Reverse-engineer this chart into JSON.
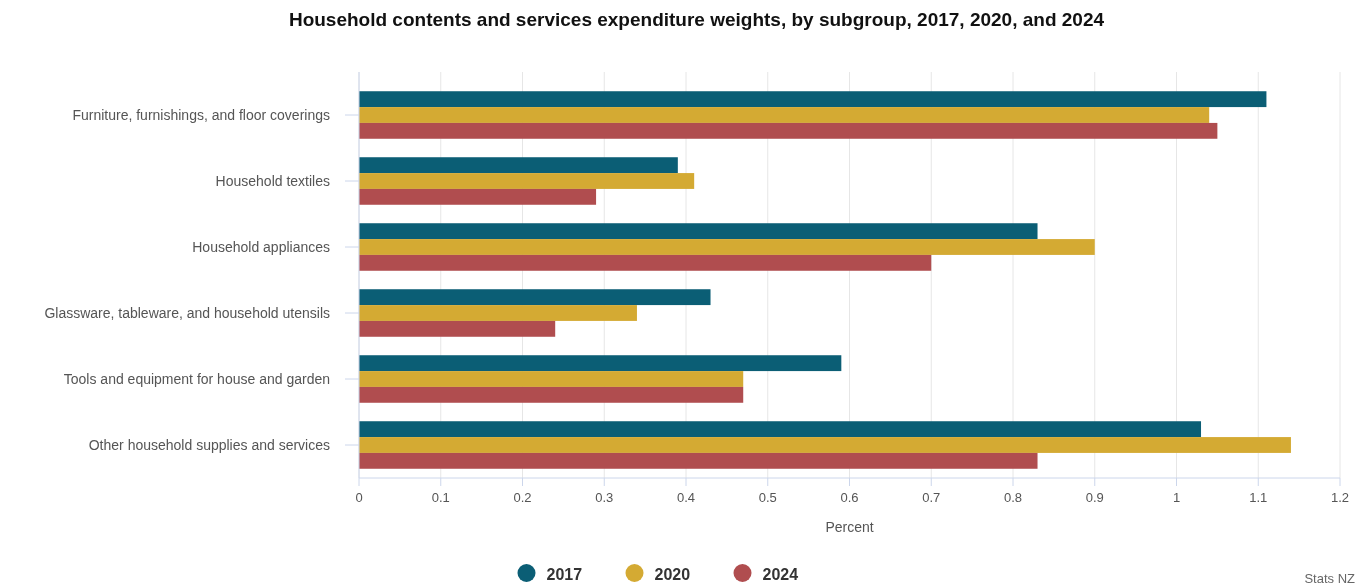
{
  "chart_data": {
    "type": "bar",
    "orientation": "horizontal",
    "title": "Household contents and services expenditure weights, by subgroup, 2017, 2020, and 2024",
    "xlabel": "Percent",
    "categories": [
      "Furniture, furnishings, and floor coverings",
      "Household textiles",
      "Household appliances",
      "Glassware, tableware, and household utensils",
      "Tools and equipment for house and garden",
      "Other household supplies and services"
    ],
    "series": [
      {
        "name": "2017",
        "color": "#0b5e75",
        "values": [
          1.11,
          0.39,
          0.83,
          0.43,
          0.59,
          1.03
        ]
      },
      {
        "name": "2020",
        "color": "#d4aa33",
        "values": [
          1.04,
          0.41,
          0.9,
          0.34,
          0.47,
          1.14
        ]
      },
      {
        "name": "2024",
        "color": "#b04d4f",
        "values": [
          1.05,
          0.29,
          0.7,
          0.24,
          0.47,
          0.83
        ]
      }
    ],
    "xlim": [
      0,
      1.2
    ],
    "xticks": [
      0,
      0.1,
      0.2,
      0.3,
      0.4,
      0.5,
      0.6,
      0.7,
      0.8,
      0.9,
      1,
      1.1,
      1.2
    ],
    "grid": "x",
    "legend": "bottom",
    "annotations": [
      "Stats NZ"
    ]
  }
}
